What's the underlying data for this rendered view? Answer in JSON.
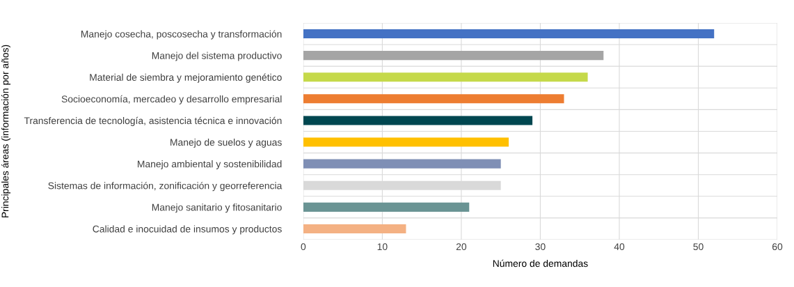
{
  "chart_data": {
    "type": "bar",
    "orientation": "horizontal",
    "categories": [
      "Manejo cosecha, poscosecha y transformación",
      "Manejo del sistema productivo",
      "Material de siembra y mejoramiento genético",
      "Socioeconomía, mercadeo y desarrollo empresarial",
      "Transferencia de tecnología, asistencia técnica e innovación",
      "Manejo de suelos y aguas",
      "Manejo ambiental y sostenibilidad",
      "Sistemas de información, zonificación y georreferencia",
      "Manejo sanitario y fitosanitario",
      "Calidad e inocuidad de insumos y productos"
    ],
    "values": [
      52,
      38,
      36,
      33,
      29,
      26,
      25,
      25,
      21,
      13
    ],
    "colors": [
      "#4472c4",
      "#a5a5a5",
      "#c5d94a",
      "#ed7d31",
      "#004750",
      "#ffc000",
      "#7f8fb5",
      "#d9d9d9",
      "#6a9494",
      "#f4b183"
    ],
    "xlim": [
      0,
      60
    ],
    "xticks": [
      0,
      10,
      20,
      30,
      40,
      50,
      60
    ],
    "xlabel": "Número de demandas",
    "ylabel": "Principales áreas (información por años)",
    "grid": true,
    "legend": false
  }
}
